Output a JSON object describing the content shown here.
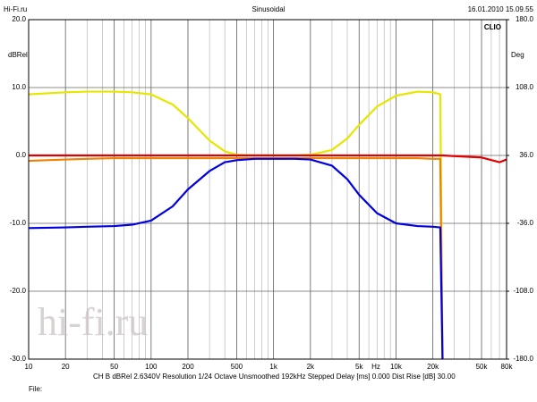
{
  "header": {
    "left": "Hi-Fi.ru",
    "center": "Sinusoidal",
    "right": "16.01.2010 15.09.55"
  },
  "chart_data": {
    "type": "line",
    "log_x": true,
    "grid": true,
    "minor_grid": true,
    "brand": "CLIO",
    "ylabel": "dBRel",
    "y2label": "Deg",
    "x_unit": "Hz",
    "watermark": "hi-fi.ru",
    "xlim": [
      10,
      80000
    ],
    "xticks": [
      10,
      20,
      50,
      100,
      200,
      500,
      {
        "value": 1000,
        "label": "1k"
      },
      {
        "value": 2000,
        "label": "2k"
      },
      {
        "value": 5000,
        "label": "5k"
      },
      {
        "value": 10000,
        "label": "10k"
      },
      {
        "value": 20000,
        "label": "20k"
      },
      {
        "value": 50000,
        "label": "50k"
      },
      {
        "value": 80000,
        "label": "80k"
      }
    ],
    "ylim": [
      -30,
      20
    ],
    "yticks": [
      {
        "value": 20,
        "label": "20.0"
      },
      {
        "value": 10,
        "label": "10.0"
      },
      {
        "value": 0,
        "label": "0.0"
      },
      {
        "value": -10,
        "label": "-10.0"
      },
      {
        "value": -20,
        "label": "-20.0"
      },
      {
        "value": -30,
        "label": "-30.0"
      }
    ],
    "y2lim": [
      -180,
      180
    ],
    "y2ticks": [
      {
        "value": 180,
        "label": "180.0"
      },
      {
        "value": 108,
        "label": "108.0"
      },
      {
        "value": 36,
        "label": "36.0"
      },
      {
        "value": -36,
        "label": "-36.0"
      },
      {
        "value": -108,
        "label": "-108.0"
      },
      {
        "value": -180,
        "label": "-180.0"
      }
    ],
    "x": [
      10,
      20,
      30,
      50,
      70,
      100,
      150,
      200,
      300,
      400,
      500,
      700,
      1000,
      1500,
      2000,
      3000,
      4000,
      5000,
      7000,
      10000,
      15000,
      20000,
      23000,
      24000,
      30000,
      50000,
      70000,
      80000
    ],
    "series": [
      {
        "color": "#e6e600",
        "values": [
          9.0,
          9.3,
          9.4,
          9.4,
          9.3,
          9.0,
          7.5,
          5.5,
          2.2,
          0.6,
          0.1,
          0,
          0,
          0,
          0.1,
          0.8,
          2.5,
          4.5,
          7.2,
          8.8,
          9.4,
          9.3,
          9.0,
          -30,
          null,
          null,
          null,
          null
        ]
      },
      {
        "color": "#f08000",
        "values": [
          -0.8,
          -0.6,
          -0.5,
          -0.4,
          -0.4,
          -0.4,
          -0.4,
          -0.4,
          -0.4,
          -0.4,
          -0.4,
          -0.4,
          -0.4,
          -0.4,
          -0.4,
          -0.4,
          -0.4,
          -0.4,
          -0.4,
          -0.4,
          -0.4,
          -0.5,
          -0.5,
          -30,
          null,
          null,
          null,
          null
        ]
      },
      {
        "color": "#e00000",
        "values": [
          0,
          0,
          0,
          0,
          0,
          0,
          0,
          0,
          0,
          0,
          0,
          0,
          0,
          0,
          0,
          0,
          0,
          0,
          0,
          0,
          0,
          0,
          0,
          0,
          -0.1,
          -0.3,
          -1.0,
          -0.6
        ]
      },
      {
        "color": "#0000e0",
        "values": [
          -10.7,
          -10.6,
          -10.5,
          -10.4,
          -10.2,
          -9.6,
          -7.5,
          -5.0,
          -2.3,
          -1.0,
          -0.7,
          -0.5,
          -0.5,
          -0.5,
          -0.6,
          -1.5,
          -3.5,
          -5.8,
          -8.5,
          -10.0,
          -10.4,
          -10.5,
          -10.6,
          -30,
          null,
          null,
          null,
          null
        ]
      }
    ]
  },
  "footer": {
    "info": "CH B   dBRel 2.6340V   Resolution 1/24 Octave   Unsmoothed   192kHz   Stepped   Delay [ms] 0.000   Dist Rise [dB] 30.00",
    "file": "File:"
  }
}
